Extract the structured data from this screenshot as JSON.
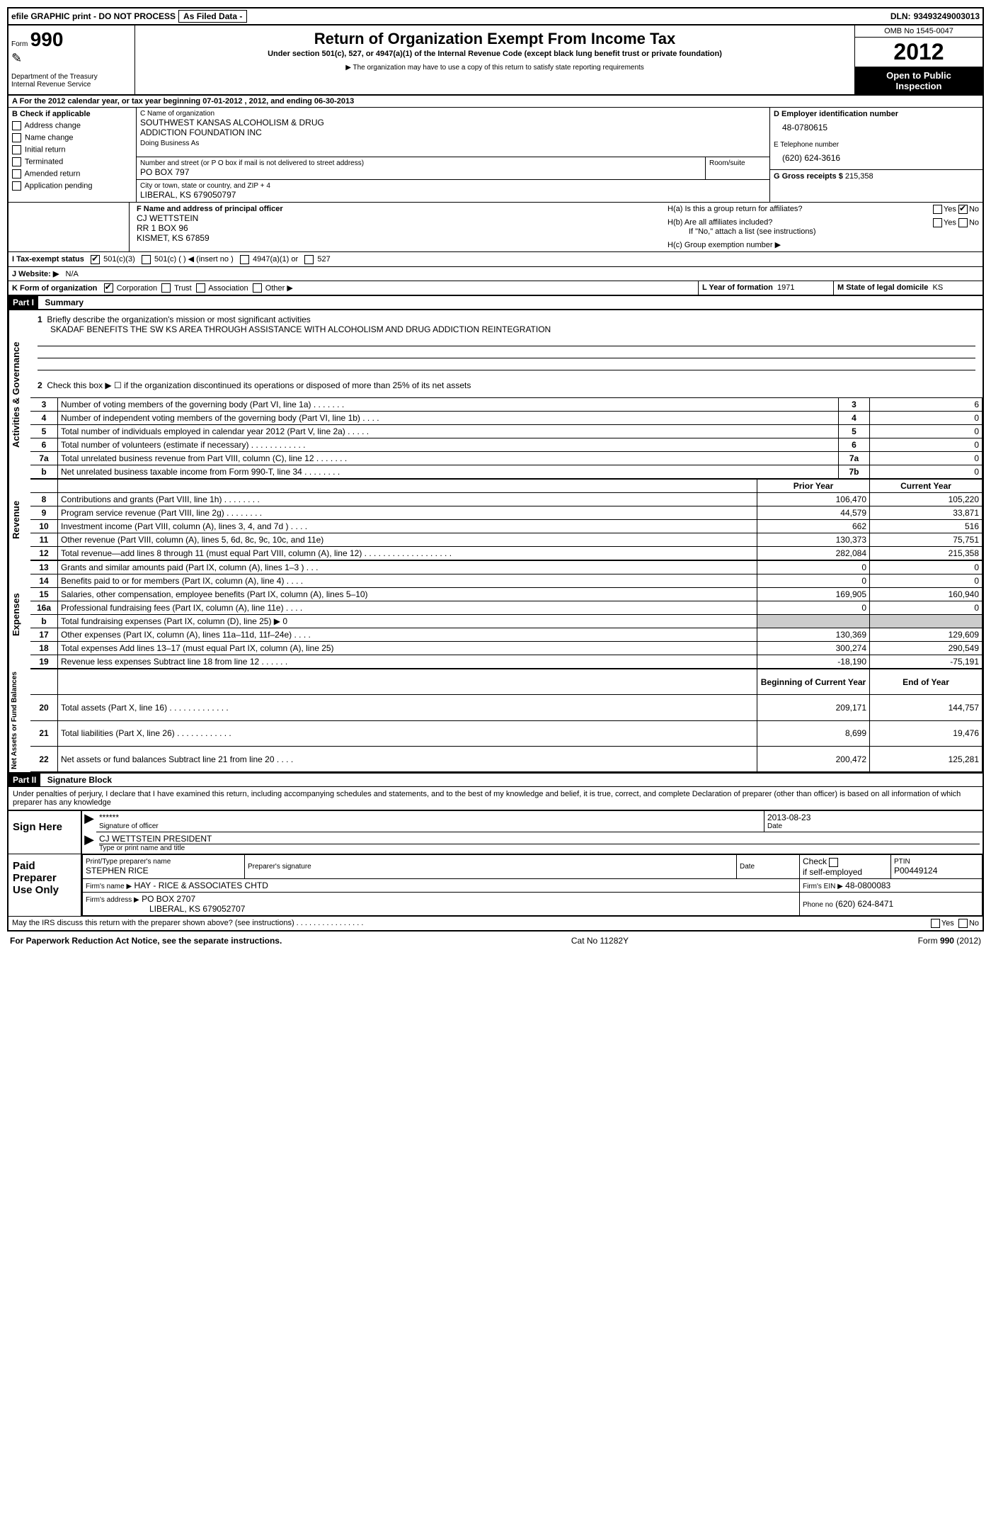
{
  "header_bar": {
    "efile": "efile GRAPHIC print - DO NOT PROCESS",
    "as_filed": "As Filed Data -",
    "dln_label": "DLN:",
    "dln": "93493249003013"
  },
  "form_left": {
    "form_word": "Form",
    "form_num": "990",
    "dept": "Department of the Treasury",
    "irs": "Internal Revenue Service"
  },
  "form_center": {
    "title": "Return of Organization Exempt From Income Tax",
    "sub1": "Under section 501(c), 527, or 4947(a)(1) of the Internal Revenue Code (except black lung benefit trust or private foundation)",
    "sub2": "▶ The organization may have to use a copy of this return to satisfy state reporting requirements"
  },
  "form_right": {
    "omb": "OMB No 1545-0047",
    "year": "2012",
    "open1": "Open to Public",
    "open2": "Inspection"
  },
  "line_a": "A For the 2012 calendar year, or tax year beginning 07-01-2012    , 2012, and ending 06-30-2013",
  "box_b": {
    "title": "B Check if applicable",
    "items": [
      "Address change",
      "Name change",
      "Initial return",
      "Terminated",
      "Amended return",
      "Application pending"
    ]
  },
  "box_c": {
    "label": "C Name of organization",
    "name1": "SOUTHWEST KANSAS ALCOHOLISM & DRUG",
    "name2": "ADDICTION FOUNDATION INC",
    "dba_label": "Doing Business As",
    "addr_label": "Number and street (or P O  box if mail is not delivered to street address)",
    "room_label": "Room/suite",
    "addr": "PO BOX 797",
    "city_label": "City or town, state or country, and ZIP + 4",
    "city": "LIBERAL, KS  679050797"
  },
  "box_d": {
    "label": "D Employer identification number",
    "ein": "48-0780615"
  },
  "box_e": {
    "label": "E Telephone number",
    "phone": "(620) 624-3616"
  },
  "box_g": {
    "label": "G Gross receipts $",
    "amount": "215,358"
  },
  "box_f": {
    "label": "F  Name and address of principal officer",
    "name": "CJ WETTSTEIN",
    "addr1": "RR 1 BOX 96",
    "addr2": "KISMET, KS  67859"
  },
  "box_h": {
    "ha_label": "H(a)  Is this a group return for affiliates?",
    "hb_label": "H(b)  Are all affiliates included?",
    "hb_note": "If \"No,\" attach a list  (see instructions)",
    "hc_label": "H(c)   Group exemption number ▶",
    "yes": "Yes",
    "no": "No"
  },
  "line_i": {
    "label": "I  Tax-exempt status",
    "opts": [
      "501(c)(3)",
      "501(c) (   ) ◀ (insert no )",
      "4947(a)(1) or",
      "527"
    ]
  },
  "line_j": {
    "label": "J  Website: ▶",
    "value": "N/A"
  },
  "line_k": {
    "label": "K Form of organization",
    "opts": [
      "Corporation",
      "Trust",
      "Association",
      "Other ▶"
    ]
  },
  "line_l": {
    "label": "L Year of formation",
    "value": "1971"
  },
  "line_m": {
    "label": "M State of legal domicile",
    "value": "KS"
  },
  "part1": {
    "label": "Part I",
    "title": "Summary"
  },
  "summary": {
    "q1_label": "1",
    "q1": "Briefly describe the organization's mission or most significant activities",
    "q1_text": "SKADAF BENEFITS THE SW KS AREA THROUGH ASSISTANCE WITH ALCOHOLISM AND DRUG ADDICTION REINTEGRATION",
    "q2_label": "2",
    "q2": "Check this box ▶ ☐ if the organization discontinued its operations or disposed of more than 25% of its net assets",
    "gov_label": "Activities & Governance",
    "rev_label": "Revenue",
    "exp_label": "Expenses",
    "na_label": "Net Assets or Fund Balances",
    "prior_year": "Prior Year",
    "current_year": "Current Year",
    "boy": "Beginning of Current Year",
    "eoy": "End of Year",
    "rows_gov": [
      {
        "n": "3",
        "t": "Number of voting members of the governing body (Part VI, line 1a)   .    .    .    .    .    .    .",
        "b": "3",
        "v": "6"
      },
      {
        "n": "4",
        "t": "Number of independent voting members of the governing body (Part VI, line 1b)    .    .    .    .",
        "b": "4",
        "v": "0"
      },
      {
        "n": "5",
        "t": "Total number of individuals employed in calendar year 2012 (Part V, line 2a)   .    .    .    .    .",
        "b": "5",
        "v": "0"
      },
      {
        "n": "6",
        "t": "Total number of volunteers (estimate if necessary)   .    .    .    .    .    .    .    .    .    .    .    .",
        "b": "6",
        "v": "0"
      },
      {
        "n": "7a",
        "t": "Total unrelated business revenue from Part VIII, column (C), line 12    .    .    .    .    .    .    .",
        "b": "7a",
        "v": "0"
      },
      {
        "n": "b",
        "t": "Net unrelated business taxable income from Form 990-T, line 34   .    .    .    .    .    .    .    .",
        "b": "7b",
        "v": "0"
      }
    ],
    "rows_rev": [
      {
        "n": "8",
        "t": "Contributions and grants (Part VIII, line 1h)    .    .    .    .    .    .    .    .",
        "p": "106,470",
        "c": "105,220"
      },
      {
        "n": "9",
        "t": "Program service revenue (Part VIII, line 2g)   .    .    .    .    .    .    .    .",
        "p": "44,579",
        "c": "33,871"
      },
      {
        "n": "10",
        "t": "Investment income (Part VIII, column (A), lines 3, 4, and 7d )   .    .    .    .",
        "p": "662",
        "c": "516"
      },
      {
        "n": "11",
        "t": "Other revenue (Part VIII, column (A), lines 5, 6d, 8c, 9c, 10c, and 11e)",
        "p": "130,373",
        "c": "75,751"
      },
      {
        "n": "12",
        "t": "Total revenue—add lines 8 through 11 (must equal Part VIII, column (A), line 12) .    .    .    .    .    .    .    .    .    .    .    .    .    .    .    .    .    .    .",
        "p": "282,084",
        "c": "215,358"
      }
    ],
    "rows_exp": [
      {
        "n": "13",
        "t": "Grants and similar amounts paid (Part IX, column (A), lines 1–3 )   .    .    .",
        "p": "0",
        "c": "0"
      },
      {
        "n": "14",
        "t": "Benefits paid to or for members (Part IX, column (A), line 4)   .    .    .    .",
        "p": "0",
        "c": "0"
      },
      {
        "n": "15",
        "t": "Salaries, other compensation, employee benefits (Part IX, column (A), lines 5–10)",
        "p": "169,905",
        "c": "160,940"
      },
      {
        "n": "16a",
        "t": "Professional fundraising fees (Part IX, column (A), line 11e)   .    .    .    .",
        "p": "0",
        "c": "0"
      },
      {
        "n": "b",
        "t": "Total fundraising expenses (Part IX, column (D), line 25) ▶ 0",
        "p": "",
        "c": ""
      },
      {
        "n": "17",
        "t": "Other expenses (Part IX, column (A), lines 11a–11d, 11f–24e)   .    .    .    .",
        "p": "130,369",
        "c": "129,609"
      },
      {
        "n": "18",
        "t": "Total expenses  Add lines 13–17 (must equal Part IX, column (A), line 25)",
        "p": "300,274",
        "c": "290,549"
      },
      {
        "n": "19",
        "t": "Revenue less expenses  Subtract line 18 from line 12   .    .    .    .    .    .",
        "p": "-18,190",
        "c": "-75,191"
      }
    ],
    "rows_na": [
      {
        "n": "20",
        "t": "Total assets (Part X, line 16)   .    .    .    .    .    .    .    .    .    .    .    .    .",
        "p": "209,171",
        "c": "144,757"
      },
      {
        "n": "21",
        "t": "Total liabilities (Part X, line 26)   .    .    .    .    .    .    .    .    .    .    .    .",
        "p": "8,699",
        "c": "19,476"
      },
      {
        "n": "22",
        "t": "Net assets or fund balances  Subtract line 21 from line 20    .    .    .    .",
        "p": "200,472",
        "c": "125,281"
      }
    ]
  },
  "part2": {
    "label": "Part II",
    "title": "Signature Block"
  },
  "penalty": "Under penalties of perjury, I declare that I have examined this return, including accompanying schedules and statements, and to the best of my knowledge and belief, it is true, correct, and complete  Declaration of preparer (other than officer) is based on all information of which preparer has any knowledge",
  "sign": {
    "left": "Sign Here",
    "sig_stars": "******",
    "sig_label": "Signature of officer",
    "date": "2013-08-23",
    "date_label": "Date",
    "name": "CJ WETTSTEIN PRESIDENT",
    "name_label": "Type or print name and title"
  },
  "paid": {
    "left": "Paid Preparer Use Only",
    "h1": "Print/Type preparer's name",
    "h2": "Preparer's signature",
    "h3": "Date",
    "h4_chk": "Check",
    "h4_if": "if self-employed",
    "h5": "PTIN",
    "prep_name": "STEPHEN RICE",
    "ptin": "P00449124",
    "firm_name_label": "Firm's name    ▶",
    "firm_name": "HAY - RICE & ASSOCIATES CHTD",
    "firm_ein_label": "Firm's EIN ▶",
    "firm_ein": "48-0800083",
    "firm_addr_label": "Firm's address ▶",
    "firm_addr1": "PO BOX 2707",
    "firm_addr2": "LIBERAL, KS  679052707",
    "phone_label": "Phone no",
    "phone": "(620) 624-8471"
  },
  "discuss": "May the IRS discuss this return with the preparer shown above? (see instructions)    .    .    .    .    .    .    .    .    .    .    .    .    .    .    .    .",
  "footer": {
    "left": "For Paperwork Reduction Act Notice, see the separate instructions.",
    "mid": "Cat No  11282Y",
    "right": "Form 990 (2012)"
  }
}
